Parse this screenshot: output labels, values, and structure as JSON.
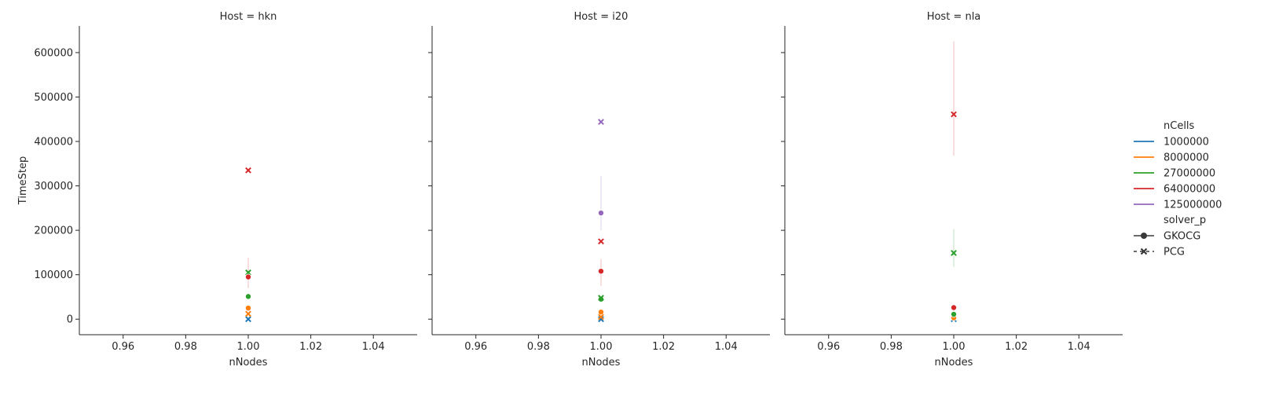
{
  "chart_data": {
    "type": "scatter",
    "layout": "facet-grid",
    "facet_titles": [
      "Host = hkn",
      "Host = i20",
      "Host = nla"
    ],
    "xlabel": "nNodes",
    "ylabel": "TimeStep",
    "xlim": [
      0.946,
      1.054
    ],
    "ylim": [
      -35000,
      660000
    ],
    "xticks": [
      0.96,
      0.98,
      1.0,
      1.02,
      1.04
    ],
    "xtick_labels": [
      "0.96",
      "0.98",
      "1.00",
      "1.02",
      "1.04"
    ],
    "yticks": [
      0,
      100000,
      200000,
      300000,
      400000,
      500000,
      600000
    ],
    "ytick_labels": [
      "0",
      "100000",
      "200000",
      "300000",
      "400000",
      "500000",
      "600000"
    ],
    "grid": false,
    "legend": {
      "placement": "right",
      "hue_title": "nCells",
      "hue_entries": [
        {
          "label": "1000000",
          "color": "#1f77b4"
        },
        {
          "label": "8000000",
          "color": "#ff7f0e"
        },
        {
          "label": "27000000",
          "color": "#2ca02c"
        },
        {
          "label": "64000000",
          "color": "#d62728"
        },
        {
          "label": "125000000",
          "color": "#9467bd"
        }
      ],
      "style_title": "solver_p",
      "style_entries": [
        {
          "label": "GKOCG",
          "marker": "circle"
        },
        {
          "label": "PCG",
          "marker": "x"
        }
      ]
    },
    "panels": [
      {
        "host": "hkn",
        "points": [
          {
            "nCells": "1000000",
            "solver": "PCG",
            "x": 1.0,
            "y": 0
          },
          {
            "nCells": "8000000",
            "solver": "GKOCG",
            "x": 1.0,
            "y": 25000
          },
          {
            "nCells": "8000000",
            "solver": "PCG",
            "x": 1.0,
            "y": 12000
          },
          {
            "nCells": "27000000",
            "solver": "GKOCG",
            "x": 1.0,
            "y": 51000
          },
          {
            "nCells": "27000000",
            "solver": "PCG",
            "x": 1.0,
            "y": 105000
          },
          {
            "nCells": "64000000",
            "solver": "GKOCG",
            "x": 1.0,
            "y": 95000,
            "ci": [
              70000,
              138000
            ]
          },
          {
            "nCells": "64000000",
            "solver": "PCG",
            "x": 1.0,
            "y": 335000
          }
        ]
      },
      {
        "host": "i20",
        "points": [
          {
            "nCells": "1000000",
            "solver": "PCG",
            "x": 1.0,
            "y": 0
          },
          {
            "nCells": "8000000",
            "solver": "GKOCG",
            "x": 1.0,
            "y": 16000
          },
          {
            "nCells": "8000000",
            "solver": "PCG",
            "x": 1.0,
            "y": 5000
          },
          {
            "nCells": "27000000",
            "solver": "GKOCG",
            "x": 1.0,
            "y": 45000
          },
          {
            "nCells": "27000000",
            "solver": "PCG",
            "x": 1.0,
            "y": 48000
          },
          {
            "nCells": "64000000",
            "solver": "GKOCG",
            "x": 1.0,
            "y": 108000,
            "ci": [
              75000,
              135000
            ]
          },
          {
            "nCells": "64000000",
            "solver": "PCG",
            "x": 1.0,
            "y": 175000
          },
          {
            "nCells": "125000000",
            "solver": "GKOCG",
            "x": 1.0,
            "y": 239000,
            "ci": [
              200000,
              322000
            ]
          },
          {
            "nCells": "125000000",
            "solver": "PCG",
            "x": 1.0,
            "y": 444000
          }
        ]
      },
      {
        "host": "nla",
        "points": [
          {
            "nCells": "1000000",
            "solver": "PCG",
            "x": 1.0,
            "y": 0
          },
          {
            "nCells": "8000000",
            "solver": "GKOCG",
            "x": 1.0,
            "y": 3000
          },
          {
            "nCells": "27000000",
            "solver": "GKOCG",
            "x": 1.0,
            "y": 11000
          },
          {
            "nCells": "27000000",
            "solver": "PCG",
            "x": 1.0,
            "y": 149000,
            "ci": [
              118000,
              203000
            ]
          },
          {
            "nCells": "64000000",
            "solver": "GKOCG",
            "x": 1.0,
            "y": 26000
          },
          {
            "nCells": "64000000",
            "solver": "PCG",
            "x": 1.0,
            "y": 461000,
            "ci": [
              368000,
              625000
            ]
          }
        ]
      }
    ]
  }
}
